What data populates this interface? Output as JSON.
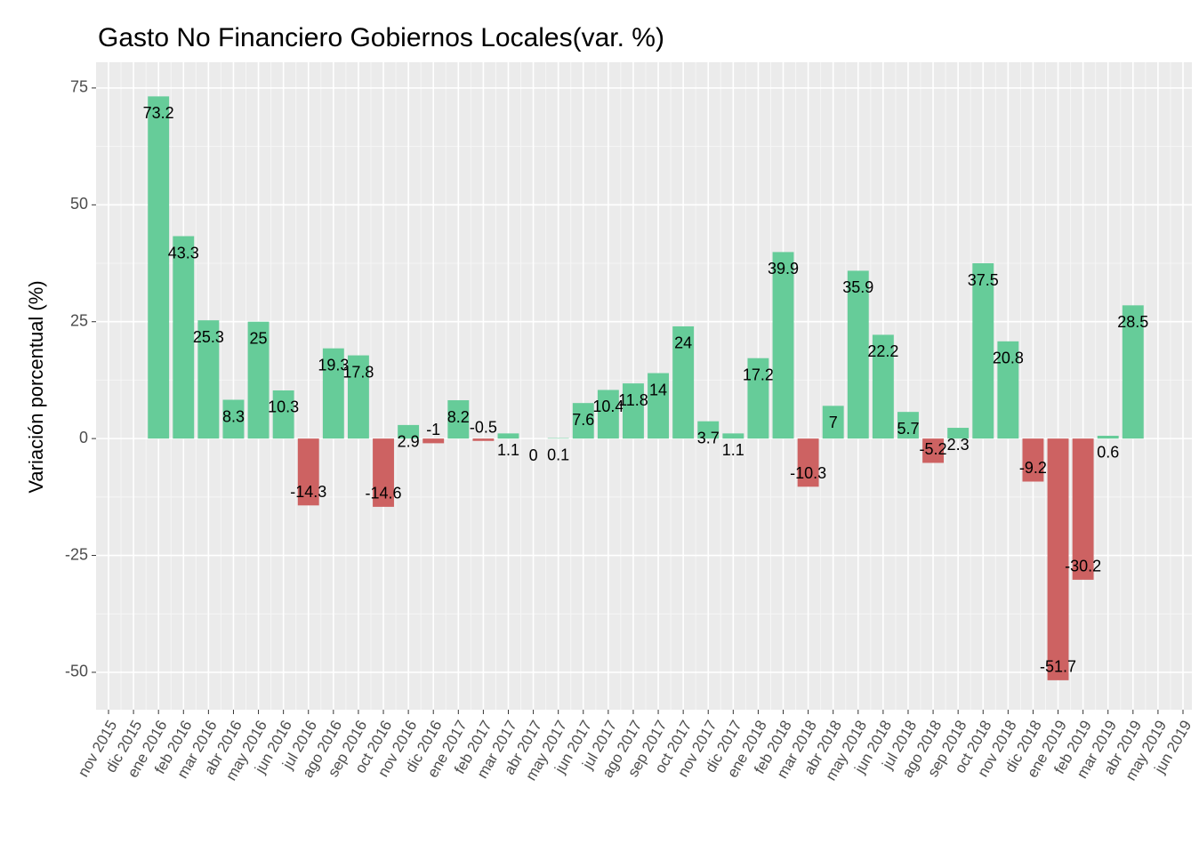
{
  "chart_data": {
    "type": "bar",
    "title": "Gasto No Financiero Gobiernos Locales(var. %)",
    "y_label": "Variación porcentual (%)",
    "categories": [
      "nov 2015",
      "dic 2015",
      "ene 2016",
      "feb 2016",
      "mar 2016",
      "abr 2016",
      "may 2016",
      "jun 2016",
      "jul 2016",
      "ago 2016",
      "sep 2016",
      "oct 2016",
      "nov 2016",
      "dic 2016",
      "ene 2017",
      "feb 2017",
      "mar 2017",
      "abr 2017",
      "may 2017",
      "jun 2017",
      "jul 2017",
      "ago 2017",
      "sep 2017",
      "oct 2017",
      "nov 2017",
      "dic 2017",
      "ene 2018",
      "feb 2018",
      "mar 2018",
      "abr 2018",
      "may 2018",
      "jun 2018",
      "jul 2018",
      "ago 2018",
      "sep 2018",
      "oct 2018",
      "nov 2018",
      "dic 2018",
      "ene 2019",
      "feb 2019",
      "mar 2019",
      "abr 2019",
      "may 2019",
      "jun 2019"
    ],
    "values": [
      null,
      null,
      73.2,
      43.3,
      25.3,
      8.3,
      25,
      10.3,
      -14.3,
      19.3,
      17.8,
      -14.6,
      2.9,
      -1,
      8.2,
      -0.5,
      1.1,
      0,
      0.1,
      7.6,
      10.4,
      11.8,
      14,
      24,
      3.7,
      1.1,
      17.2,
      39.9,
      -10.3,
      7,
      35.9,
      22.2,
      5.7,
      -5.2,
      2.3,
      37.5,
      20.8,
      -9.2,
      -51.7,
      -30.2,
      0.6,
      28.5,
      null,
      null
    ],
    "positive_color": "#66cc99",
    "negative_color": "#cd6262",
    "ylim": [
      -58,
      80.5
    ],
    "yticks": [
      -50,
      -25,
      0,
      25,
      50,
      75
    ],
    "grid": true
  }
}
